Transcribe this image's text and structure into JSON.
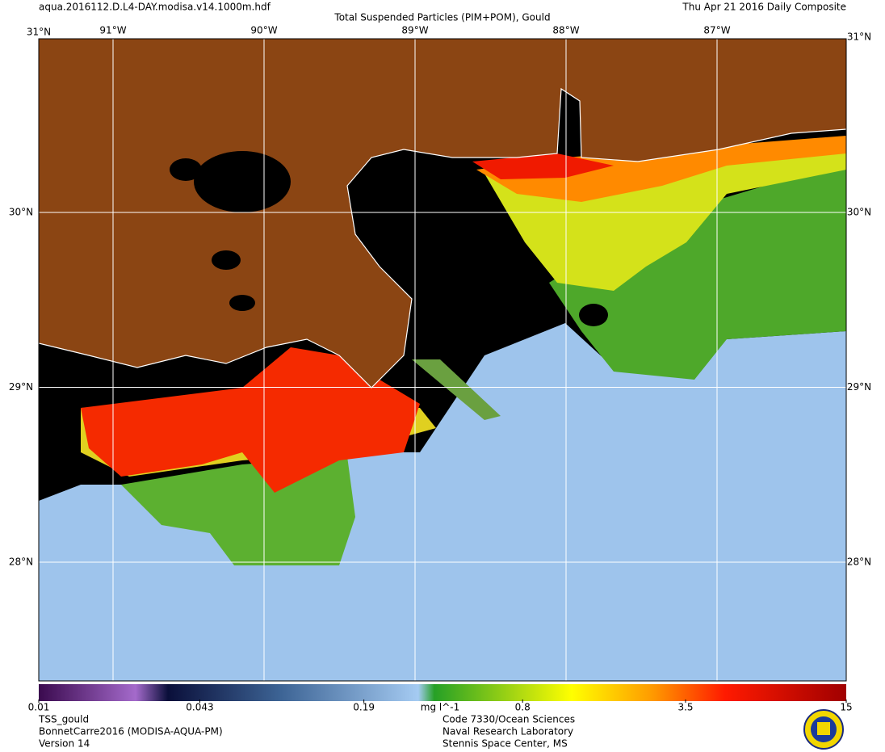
{
  "header": {
    "file": "aqua.2016112.D.L4-DAY.modisa.v14.1000m.hdf",
    "title": "Total Suspended Particles (PIM+POM), Gould",
    "date": "Thu Apr 21 2016 Daily Composite"
  },
  "map": {
    "corner_labels": [
      "31°N",
      "31°N"
    ],
    "lon_labels": [
      "91°W",
      "90°W",
      "89°W",
      "88°W",
      "87°W"
    ],
    "lat_labels": [
      "30°N",
      "29°N",
      "28°N"
    ]
  },
  "colorbar": {
    "scale": "log",
    "range": [
      0.01,
      15
    ],
    "ticks": [
      0.01,
      0.043,
      0.19,
      0.8,
      3.5,
      15
    ],
    "unit": "mg l^-1"
  },
  "footer": {
    "left": [
      "TSS_gould",
      "BonnetCarre2016 (MODISA-AQUA-PM)",
      "Version 14"
    ],
    "center": [
      "Code 7330/Ocean Sciences",
      "Naval Research Laboratory",
      "Stennis Space Center, MS"
    ]
  }
}
